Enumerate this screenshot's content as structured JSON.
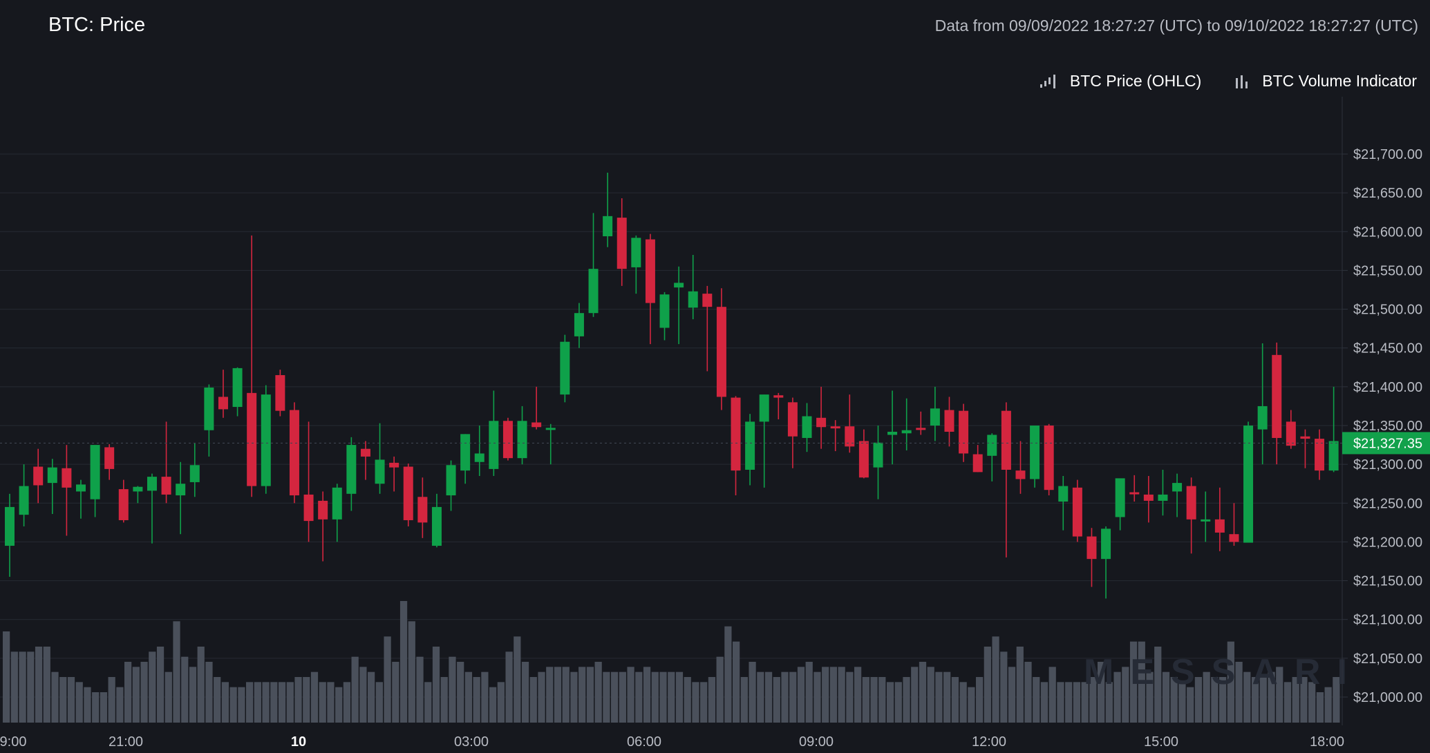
{
  "header": {
    "title": "BTC: Price",
    "range": "Data from 09/09/2022 18:27:27 (UTC) to 09/10/2022 18:27:27 (UTC)"
  },
  "legend": {
    "price_label": "BTC Price (OHLC)",
    "volume_label": "BTC Volume Indicator"
  },
  "watermark": "MESSARI",
  "colors": {
    "background": "#16181e",
    "up": "#0fa14a",
    "down": "#d4263f",
    "volume": "#4a505b",
    "grid": "#262a33",
    "axis_text": "#b9bcc4",
    "price_tag": "#12a14b"
  },
  "last_price_label": "$21,327.35",
  "chart_data": {
    "type": "candlestick",
    "y_axis": {
      "ticks": [
        21000,
        21050,
        21100,
        21150,
        21200,
        21250,
        21300,
        21350,
        21400,
        21450,
        21500,
        21550,
        21600,
        21650,
        21700
      ],
      "tick_labels": [
        "$21,000.00",
        "$21,050.00",
        "$21,100.00",
        "$21,150.00",
        "$21,200.00",
        "$21,250.00",
        "$21,300.00",
        "$21,350.00",
        "$21,400.00",
        "$21,450.00",
        "$21,500.00",
        "$21,550.00",
        "$21,600.00",
        "$21,650.00",
        "$21,700.00"
      ],
      "position": "right",
      "grid": true
    },
    "x_axis": {
      "labels": [
        {
          "text": "9:00",
          "bold": false
        },
        {
          "text": "21:00",
          "bold": false
        },
        {
          "text": "10",
          "bold": true
        },
        {
          "text": "03:00",
          "bold": false
        },
        {
          "text": "06:00",
          "bold": false
        },
        {
          "text": "09:00",
          "bold": false
        },
        {
          "text": "12:00",
          "bold": false
        },
        {
          "text": "15:00",
          "bold": false
        },
        {
          "text": "18:00",
          "bold": false
        }
      ]
    },
    "last_price": 21327.35,
    "candles": [
      {
        "o": 21195,
        "h": 21262,
        "l": 21155,
        "c": 21245
      },
      {
        "o": 21235,
        "h": 21300,
        "l": 21220,
        "c": 21272
      },
      {
        "o": 21297,
        "h": 21320,
        "l": 21250,
        "c": 21273
      },
      {
        "o": 21276,
        "h": 21307,
        "l": 21236,
        "c": 21296
      },
      {
        "o": 21295,
        "h": 21325,
        "l": 21208,
        "c": 21270
      },
      {
        "o": 21265,
        "h": 21280,
        "l": 21230,
        "c": 21274
      },
      {
        "o": 21255,
        "h": 21320,
        "l": 21232,
        "c": 21325
      },
      {
        "o": 21322,
        "h": 21326,
        "l": 21280,
        "c": 21294
      },
      {
        "o": 21268,
        "h": 21280,
        "l": 21225,
        "c": 21228
      },
      {
        "o": 21265,
        "h": 21272,
        "l": 21250,
        "c": 21271
      },
      {
        "o": 21266,
        "h": 21288,
        "l": 21198,
        "c": 21284
      },
      {
        "o": 21284,
        "h": 21355,
        "l": 21250,
        "c": 21261
      },
      {
        "o": 21260,
        "h": 21303,
        "l": 21210,
        "c": 21275
      },
      {
        "o": 21277,
        "h": 21327,
        "l": 21258,
        "c": 21299
      },
      {
        "o": 21344,
        "h": 21403,
        "l": 21310,
        "c": 21399
      },
      {
        "o": 21387,
        "h": 21422,
        "l": 21360,
        "c": 21371
      },
      {
        "o": 21374,
        "h": 21425,
        "l": 21362,
        "c": 21424
      },
      {
        "o": 21392,
        "h": 21595,
        "l": 21258,
        "c": 21272
      },
      {
        "o": 21272,
        "h": 21402,
        "l": 21262,
        "c": 21390
      },
      {
        "o": 21415,
        "h": 21422,
        "l": 21362,
        "c": 21369
      },
      {
        "o": 21370,
        "h": 21380,
        "l": 21250,
        "c": 21260
      },
      {
        "o": 21261,
        "h": 21355,
        "l": 21200,
        "c": 21227
      },
      {
        "o": 21253,
        "h": 21265,
        "l": 21175,
        "c": 21229
      },
      {
        "o": 21229,
        "h": 21275,
        "l": 21200,
        "c": 21270
      },
      {
        "o": 21262,
        "h": 21335,
        "l": 21240,
        "c": 21325
      },
      {
        "o": 21320,
        "h": 21330,
        "l": 21280,
        "c": 21310
      },
      {
        "o": 21275,
        "h": 21353,
        "l": 21262,
        "c": 21306
      },
      {
        "o": 21302,
        "h": 21310,
        "l": 21265,
        "c": 21296
      },
      {
        "o": 21297,
        "h": 21301,
        "l": 21220,
        "c": 21228
      },
      {
        "o": 21258,
        "h": 21283,
        "l": 21205,
        "c": 21225
      },
      {
        "o": 21195,
        "h": 21262,
        "l": 21193,
        "c": 21245
      },
      {
        "o": 21260,
        "h": 21305,
        "l": 21240,
        "c": 21299
      },
      {
        "o": 21292,
        "h": 21339,
        "l": 21275,
        "c": 21339
      },
      {
        "o": 21303,
        "h": 21350,
        "l": 21285,
        "c": 21314
      },
      {
        "o": 21294,
        "h": 21395,
        "l": 21285,
        "c": 21356
      },
      {
        "o": 21356,
        "h": 21360,
        "l": 21305,
        "c": 21308
      },
      {
        "o": 21308,
        "h": 21375,
        "l": 21300,
        "c": 21356
      },
      {
        "o": 21354,
        "h": 21400,
        "l": 21345,
        "c": 21348
      },
      {
        "o": 21347,
        "h": 21352,
        "l": 21300,
        "c": 21347
      },
      {
        "o": 21390,
        "h": 21467,
        "l": 21380,
        "c": 21458
      },
      {
        "o": 21465,
        "h": 21508,
        "l": 21450,
        "c": 21495
      },
      {
        "o": 21495,
        "h": 21624,
        "l": 21490,
        "c": 21552
      },
      {
        "o": 21594,
        "h": 21676,
        "l": 21580,
        "c": 21620
      },
      {
        "o": 21618,
        "h": 21643,
        "l": 21530,
        "c": 21552
      },
      {
        "o": 21554,
        "h": 21595,
        "l": 21520,
        "c": 21592
      },
      {
        "o": 21590,
        "h": 21597,
        "l": 21455,
        "c": 21508
      },
      {
        "o": 21476,
        "h": 21522,
        "l": 21460,
        "c": 21519
      },
      {
        "o": 21528,
        "h": 21555,
        "l": 21455,
        "c": 21534
      },
      {
        "o": 21502,
        "h": 21570,
        "l": 21487,
        "c": 21523
      },
      {
        "o": 21520,
        "h": 21530,
        "l": 21420,
        "c": 21503
      },
      {
        "o": 21503,
        "h": 21527,
        "l": 21370,
        "c": 21387
      },
      {
        "o": 21386,
        "h": 21388,
        "l": 21260,
        "c": 21292
      },
      {
        "o": 21293,
        "h": 21365,
        "l": 21273,
        "c": 21355
      },
      {
        "o": 21355,
        "h": 21390,
        "l": 21270,
        "c": 21390
      },
      {
        "o": 21389,
        "h": 21392,
        "l": 21358,
        "c": 21386
      },
      {
        "o": 21380,
        "h": 21386,
        "l": 21295,
        "c": 21336
      },
      {
        "o": 21334,
        "h": 21379,
        "l": 21316,
        "c": 21362
      },
      {
        "o": 21360,
        "h": 21400,
        "l": 21320,
        "c": 21348
      },
      {
        "o": 21349,
        "h": 21357,
        "l": 21317,
        "c": 21347
      },
      {
        "o": 21349,
        "h": 21390,
        "l": 21315,
        "c": 21323
      },
      {
        "o": 21330,
        "h": 21345,
        "l": 21282,
        "c": 21283
      },
      {
        "o": 21296,
        "h": 21350,
        "l": 21255,
        "c": 21328
      },
      {
        "o": 21338,
        "h": 21395,
        "l": 21300,
        "c": 21342
      },
      {
        "o": 21340,
        "h": 21385,
        "l": 21318,
        "c": 21344
      },
      {
        "o": 21347,
        "h": 21368,
        "l": 21338,
        "c": 21346
      },
      {
        "o": 21350,
        "h": 21400,
        "l": 21330,
        "c": 21372
      },
      {
        "o": 21370,
        "h": 21387,
        "l": 21323,
        "c": 21342
      },
      {
        "o": 21369,
        "h": 21378,
        "l": 21303,
        "c": 21314
      },
      {
        "o": 21313,
        "h": 21325,
        "l": 21290,
        "c": 21290
      },
      {
        "o": 21311,
        "h": 21340,
        "l": 21278,
        "c": 21338
      },
      {
        "o": 21369,
        "h": 21380,
        "l": 21180,
        "c": 21293
      },
      {
        "o": 21292,
        "h": 21330,
        "l": 21262,
        "c": 21281
      },
      {
        "o": 21281,
        "h": 21350,
        "l": 21270,
        "c": 21350
      },
      {
        "o": 21350,
        "h": 21352,
        "l": 21260,
        "c": 21267
      },
      {
        "o": 21252,
        "h": 21285,
        "l": 21215,
        "c": 21272
      },
      {
        "o": 21270,
        "h": 21280,
        "l": 21200,
        "c": 21207
      },
      {
        "o": 21207,
        "h": 21218,
        "l": 21142,
        "c": 21178
      },
      {
        "o": 21178,
        "h": 21220,
        "l": 21127,
        "c": 21217
      },
      {
        "o": 21232,
        "h": 21280,
        "l": 21215,
        "c": 21282
      },
      {
        "o": 21264,
        "h": 21286,
        "l": 21252,
        "c": 21262
      },
      {
        "o": 21261,
        "h": 21285,
        "l": 21225,
        "c": 21253
      },
      {
        "o": 21253,
        "h": 21293,
        "l": 21234,
        "c": 21261
      },
      {
        "o": 21265,
        "h": 21288,
        "l": 21232,
        "c": 21276
      },
      {
        "o": 21272,
        "h": 21283,
        "l": 21185,
        "c": 21229
      },
      {
        "o": 21229,
        "h": 21265,
        "l": 21200,
        "c": 21229
      },
      {
        "o": 21229,
        "h": 21270,
        "l": 21188,
        "c": 21212
      },
      {
        "o": 21210,
        "h": 21250,
        "l": 21195,
        "c": 21200
      },
      {
        "o": 21199,
        "h": 21355,
        "l": 21200,
        "c": 21350
      },
      {
        "o": 21345,
        "h": 21456,
        "l": 21300,
        "c": 21375
      },
      {
        "o": 21441,
        "h": 21457,
        "l": 21300,
        "c": 21334
      },
      {
        "o": 21355,
        "h": 21370,
        "l": 21320,
        "c": 21324
      },
      {
        "o": 21336,
        "h": 21345,
        "l": 21295,
        "c": 21333
      },
      {
        "o": 21333,
        "h": 21345,
        "l": 21280,
        "c": 21292
      },
      {
        "o": 21292,
        "h": 21400,
        "l": 21290,
        "c": 21330
      }
    ],
    "volume": [
      18,
      14,
      14,
      14,
      15,
      15,
      10,
      9,
      9,
      8,
      7,
      6,
      6,
      9,
      7,
      12,
      11,
      12,
      14,
      15,
      10,
      20,
      13,
      11,
      15,
      12,
      9,
      8,
      7,
      7,
      8,
      8,
      8,
      8,
      8,
      8,
      9,
      9,
      10,
      8,
      8,
      7,
      8,
      13,
      11,
      10,
      8,
      17,
      12,
      24,
      20,
      13,
      8,
      15,
      9,
      13,
      12,
      10,
      9,
      10,
      7,
      8,
      14,
      17,
      12,
      9,
      10,
      11,
      11,
      11,
      10,
      11,
      11,
      12,
      10,
      10,
      10,
      11,
      10,
      11,
      10,
      10,
      10,
      10,
      9,
      8,
      8,
      9,
      13,
      19,
      16,
      9,
      12,
      10,
      10,
      9,
      10,
      10,
      11,
      12,
      10,
      11,
      11,
      11,
      10,
      11,
      9,
      9,
      9,
      8,
      8,
      9,
      11,
      12,
      11,
      10,
      10,
      9,
      8,
      7,
      9,
      15,
      17,
      14,
      11,
      15,
      12,
      9,
      8,
      11,
      8,
      8,
      8,
      8,
      9,
      12,
      8,
      10,
      11,
      16,
      16,
      10,
      15,
      10,
      9,
      8,
      7,
      9,
      10,
      9,
      9,
      16,
      12,
      10,
      9,
      9,
      10,
      11,
      8,
      9,
      9,
      8,
      6,
      7,
      9
    ]
  }
}
